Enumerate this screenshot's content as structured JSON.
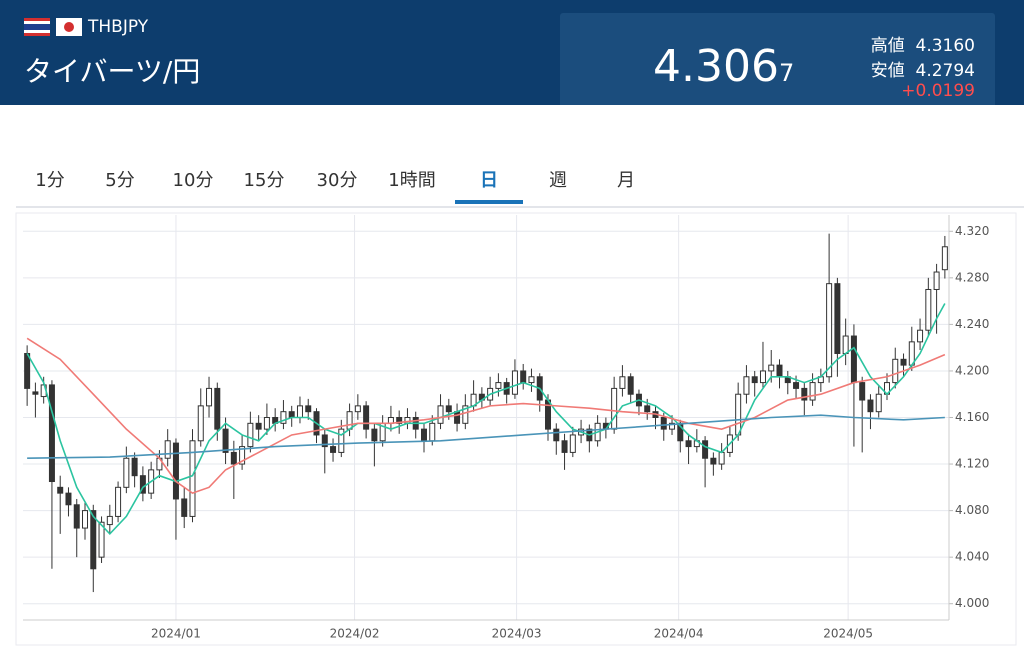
{
  "header": {
    "symbol": "THBJPY",
    "name": "タイバーツ/円",
    "price": "4.306",
    "price_small": "7",
    "high_label": "高値",
    "high": "4.3160",
    "low_label": "安値",
    "low": "4.2794",
    "change": "+0.0199"
  },
  "tabs": {
    "items": [
      "1分",
      "5分",
      "10分",
      "15分",
      "30分",
      "1時間",
      "日",
      "週",
      "月"
    ],
    "active": 6
  },
  "chart_data": {
    "type": "candlestick",
    "up_color": "#ffffff",
    "down_color": "#333333",
    "border_color": "#333333",
    "ylim": [
      3.986,
      4.334
    ],
    "xlim": [
      -0.5,
      111.5
    ],
    "yticks": [
      {
        "value": 4.0,
        "label": "4.000"
      },
      {
        "value": 4.04,
        "label": "4.040"
      },
      {
        "value": 4.08,
        "label": "4.080"
      },
      {
        "value": 4.12,
        "label": "4.120"
      },
      {
        "value": 4.16,
        "label": "4.160"
      },
      {
        "value": 4.2,
        "label": "4.200"
      },
      {
        "value": 4.24,
        "label": "4.240"
      },
      {
        "value": 4.28,
        "label": "4.280"
      },
      {
        "value": 4.32,
        "label": "4.320"
      }
    ],
    "xticks": [
      {
        "value": 18,
        "label": "2024/01"
      },
      {
        "value": 39.6,
        "label": "2024/02"
      },
      {
        "value": 59.2,
        "label": "2024/03"
      },
      {
        "value": 78.8,
        "label": "2024/04"
      },
      {
        "value": 99.3,
        "label": "2024/05"
      }
    ],
    "grid": true,
    "ohlc": [
      [
        4.215,
        4.222,
        4.17,
        4.185
      ],
      [
        4.182,
        4.19,
        4.16,
        4.18
      ],
      [
        4.178,
        4.195,
        4.172,
        4.188
      ],
      [
        4.188,
        4.192,
        4.03,
        4.105
      ],
      [
        4.1,
        4.11,
        4.06,
        4.095
      ],
      [
        4.095,
        4.1,
        4.075,
        4.085
      ],
      [
        4.085,
        4.09,
        4.04,
        4.065
      ],
      [
        4.065,
        4.088,
        4.055,
        4.08
      ],
      [
        4.08,
        4.085,
        4.01,
        4.03
      ],
      [
        4.04,
        4.075,
        4.035,
        4.07
      ],
      [
        4.068,
        4.085,
        4.06,
        4.075
      ],
      [
        4.075,
        4.105,
        4.07,
        4.1
      ],
      [
        4.1,
        4.135,
        4.095,
        4.125
      ],
      [
        4.125,
        4.13,
        4.1,
        4.11
      ],
      [
        4.11,
        4.118,
        4.088,
        4.095
      ],
      [
        4.095,
        4.122,
        4.09,
        4.115
      ],
      [
        4.115,
        4.132,
        4.108,
        4.125
      ],
      [
        4.125,
        4.15,
        4.118,
        4.14
      ],
      [
        4.138,
        4.142,
        4.055,
        4.09
      ],
      [
        4.09,
        4.1,
        4.065,
        4.075
      ],
      [
        4.075,
        4.15,
        4.07,
        4.14
      ],
      [
        4.14,
        4.185,
        4.135,
        4.17
      ],
      [
        4.17,
        4.195,
        4.16,
        4.185
      ],
      [
        4.185,
        4.19,
        4.14,
        4.15
      ],
      [
        4.15,
        4.16,
        4.12,
        4.13
      ],
      [
        4.13,
        4.14,
        4.09,
        4.12
      ],
      [
        4.12,
        4.145,
        4.115,
        4.135
      ],
      [
        4.135,
        4.165,
        4.13,
        4.155
      ],
      [
        4.155,
        4.162,
        4.14,
        4.15
      ],
      [
        4.15,
        4.172,
        4.145,
        4.16
      ],
      [
        4.16,
        4.168,
        4.148,
        4.155
      ],
      [
        4.155,
        4.175,
        4.15,
        4.165
      ],
      [
        4.165,
        4.17,
        4.152,
        4.16
      ],
      [
        4.16,
        4.178,
        4.155,
        4.17
      ],
      [
        4.17,
        4.176,
        4.158,
        4.165
      ],
      [
        4.165,
        4.168,
        4.138,
        4.145
      ],
      [
        4.145,
        4.15,
        4.112,
        4.135
      ],
      [
        4.135,
        4.142,
        4.122,
        4.13
      ],
      [
        4.13,
        4.158,
        4.126,
        4.15
      ],
      [
        4.15,
        4.172,
        4.144,
        4.165
      ],
      [
        4.165,
        4.18,
        4.158,
        4.17
      ],
      [
        4.17,
        4.174,
        4.142,
        4.15
      ],
      [
        4.15,
        4.155,
        4.118,
        4.14
      ],
      [
        4.14,
        4.162,
        4.135,
        4.155
      ],
      [
        4.155,
        4.17,
        4.148,
        4.16
      ],
      [
        4.16,
        4.166,
        4.146,
        4.155
      ],
      [
        4.155,
        4.168,
        4.15,
        4.16
      ],
      [
        4.16,
        4.165,
        4.142,
        4.15
      ],
      [
        4.15,
        4.155,
        4.13,
        4.14
      ],
      [
        4.14,
        4.162,
        4.136,
        4.155
      ],
      [
        4.155,
        4.18,
        4.15,
        4.17
      ],
      [
        4.17,
        4.176,
        4.158,
        4.165
      ],
      [
        4.165,
        4.172,
        4.148,
        4.155
      ],
      [
        4.155,
        4.18,
        4.15,
        4.17
      ],
      [
        4.17,
        4.192,
        4.165,
        4.18
      ],
      [
        4.18,
        4.186,
        4.168,
        4.175
      ],
      [
        4.175,
        4.195,
        4.17,
        4.185
      ],
      [
        4.185,
        4.198,
        4.178,
        4.19
      ],
      [
        4.19,
        4.194,
        4.172,
        4.18
      ],
      [
        4.18,
        4.21,
        4.176,
        4.2
      ],
      [
        4.2,
        4.206,
        4.184,
        4.19
      ],
      [
        4.19,
        4.202,
        4.182,
        4.195
      ],
      [
        4.195,
        4.198,
        4.165,
        4.175
      ],
      [
        4.175,
        4.18,
        4.14,
        4.15
      ],
      [
        4.15,
        4.155,
        4.128,
        4.14
      ],
      [
        4.14,
        4.146,
        4.115,
        4.13
      ],
      [
        4.13,
        4.152,
        4.126,
        4.145
      ],
      [
        4.145,
        4.158,
        4.138,
        4.15
      ],
      [
        4.15,
        4.154,
        4.13,
        4.14
      ],
      [
        4.14,
        4.162,
        4.135,
        4.155
      ],
      [
        4.155,
        4.16,
        4.142,
        4.15
      ],
      [
        4.15,
        4.195,
        4.146,
        4.185
      ],
      [
        4.185,
        4.205,
        4.178,
        4.195
      ],
      [
        4.195,
        4.198,
        4.172,
        4.18
      ],
      [
        4.18,
        4.184,
        4.162,
        4.17
      ],
      [
        4.17,
        4.176,
        4.158,
        4.165
      ],
      [
        4.165,
        4.17,
        4.15,
        4.16
      ],
      [
        4.16,
        4.164,
        4.14,
        4.15
      ],
      [
        4.15,
        4.162,
        4.145,
        4.155
      ],
      [
        4.155,
        4.158,
        4.13,
        4.14
      ],
      [
        4.14,
        4.146,
        4.12,
        4.135
      ],
      [
        4.135,
        4.15,
        4.13,
        4.14
      ],
      [
        4.14,
        4.144,
        4.1,
        4.125
      ],
      [
        4.125,
        4.13,
        4.11,
        4.12
      ],
      [
        4.12,
        4.138,
        4.115,
        4.13
      ],
      [
        4.13,
        4.152,
        4.126,
        4.145
      ],
      [
        4.145,
        4.19,
        4.14,
        4.18
      ],
      [
        4.18,
        4.205,
        4.172,
        4.195
      ],
      [
        4.195,
        4.2,
        4.178,
        4.19
      ],
      [
        4.19,
        4.225,
        4.185,
        4.2
      ],
      [
        4.2,
        4.218,
        4.19,
        4.205
      ],
      [
        4.205,
        4.21,
        4.185,
        4.195
      ],
      [
        4.195,
        4.2,
        4.18,
        4.19
      ],
      [
        4.19,
        4.196,
        4.176,
        4.185
      ],
      [
        4.185,
        4.19,
        4.162,
        4.175
      ],
      [
        4.175,
        4.198,
        4.17,
        4.19
      ],
      [
        4.19,
        4.202,
        4.182,
        4.195
      ],
      [
        4.195,
        4.318,
        4.19,
        4.275
      ],
      [
        4.275,
        4.28,
        4.195,
        4.215
      ],
      [
        4.215,
        4.245,
        4.205,
        4.23
      ],
      [
        4.23,
        4.24,
        4.135,
        4.19
      ],
      [
        4.19,
        4.195,
        4.13,
        4.175
      ],
      [
        4.175,
        4.18,
        4.15,
        4.165
      ],
      [
        4.165,
        4.188,
        4.16,
        4.18
      ],
      [
        4.18,
        4.198,
        4.175,
        4.19
      ],
      [
        4.19,
        4.22,
        4.185,
        4.21
      ],
      [
        4.21,
        4.215,
        4.195,
        4.205
      ],
      [
        4.205,
        4.238,
        4.2,
        4.225
      ],
      [
        4.225,
        4.245,
        4.218,
        4.235
      ],
      [
        4.235,
        4.28,
        4.23,
        4.27
      ],
      [
        4.27,
        4.292,
        4.232,
        4.285
      ],
      [
        4.287,
        4.316,
        4.2794,
        4.3067
      ]
    ],
    "series": [
      {
        "color": "#2bc4a0",
        "x": [
          0,
          2,
          4,
          6,
          8,
          10,
          12,
          14,
          16,
          18,
          20,
          22,
          24,
          26,
          28,
          30,
          32,
          34,
          36,
          38,
          40,
          42,
          44,
          46,
          48,
          50,
          52,
          54,
          56,
          58,
          60,
          62,
          64,
          66,
          68,
          70,
          72,
          74,
          76,
          78,
          80,
          82,
          84,
          86,
          88,
          90,
          92,
          94,
          96,
          98,
          100,
          102,
          104,
          106,
          108,
          110,
          111
        ],
        "values": [
          4.215,
          4.19,
          4.14,
          4.1,
          4.075,
          4.06,
          4.075,
          4.1,
          4.11,
          4.105,
          4.11,
          4.14,
          4.155,
          4.145,
          4.14,
          4.155,
          4.16,
          4.16,
          4.15,
          4.145,
          4.155,
          4.155,
          4.15,
          4.155,
          4.155,
          4.16,
          4.165,
          4.17,
          4.18,
          4.185,
          4.19,
          4.185,
          4.165,
          4.15,
          4.145,
          4.15,
          4.17,
          4.175,
          4.17,
          4.16,
          4.145,
          4.135,
          4.13,
          4.145,
          4.175,
          4.195,
          4.195,
          4.19,
          4.195,
          4.21,
          4.22,
          4.195,
          4.18,
          4.195,
          4.215,
          4.245,
          4.258
        ]
      },
      {
        "color": "#f07a76",
        "x": [
          0,
          4,
          8,
          12,
          16,
          18,
          20,
          22,
          24,
          28,
          32,
          36,
          40,
          44,
          48,
          52,
          56,
          60,
          64,
          68,
          72,
          76,
          80,
          84,
          88,
          92,
          96,
          100,
          104,
          108,
          111
        ],
        "values": [
          4.228,
          4.21,
          4.18,
          4.15,
          4.125,
          4.105,
          4.095,
          4.1,
          4.115,
          4.13,
          4.145,
          4.15,
          4.155,
          4.155,
          4.158,
          4.162,
          4.17,
          4.172,
          4.17,
          4.168,
          4.165,
          4.163,
          4.155,
          4.15,
          4.16,
          4.175,
          4.18,
          4.19,
          4.195,
          4.205,
          4.214
        ]
      },
      {
        "color": "#4a94b8",
        "x": [
          0,
          10,
          20,
          30,
          40,
          50,
          60,
          70,
          80,
          90,
          96,
          100,
          106,
          111
        ],
        "values": [
          4.125,
          4.126,
          4.13,
          4.135,
          4.138,
          4.14,
          4.145,
          4.15,
          4.155,
          4.16,
          4.162,
          4.16,
          4.158,
          4.16
        ]
      }
    ]
  }
}
